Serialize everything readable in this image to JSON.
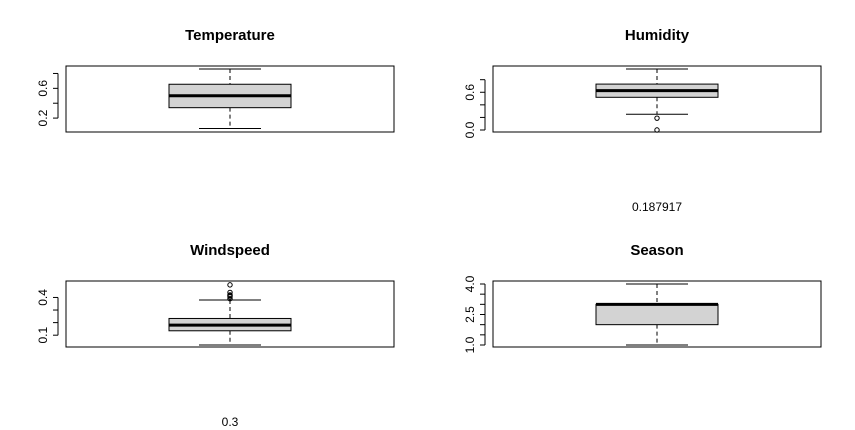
{
  "chart_data": [
    {
      "type": "boxplot",
      "title": "Temperature",
      "ylim": [
        0.04,
        0.86
      ],
      "yticks": [
        0.2,
        0.4,
        0.6,
        0.8
      ],
      "ytick_labels": [
        "0.2",
        "",
        "0.6",
        ""
      ],
      "whisker_low": 0.06,
      "q1": 0.34,
      "median": 0.5,
      "q3": 0.655,
      "whisker_high": 0.86,
      "outliers": [],
      "notes": []
    },
    {
      "type": "boxplot",
      "title": "Humidity",
      "ylim": [
        0.0,
        0.97
      ],
      "yticks": [
        0.0,
        0.2,
        0.4,
        0.6,
        0.8
      ],
      "ytick_labels": [
        "0.0",
        "",
        "",
        "0.6",
        ""
      ],
      "whisker_low": 0.25,
      "q1": 0.52,
      "median": 0.626,
      "q3": 0.73,
      "whisker_high": 0.97,
      "outliers": [
        0.0,
        0.187917
      ],
      "notes": [
        "0.187917"
      ]
    },
    {
      "type": "boxplot",
      "title": "Windspeed",
      "ylim": [
        0.022,
        0.507
      ],
      "yticks": [
        0.1,
        0.2,
        0.3,
        0.4
      ],
      "ytick_labels": [
        "0.1",
        "",
        "",
        "0.4"
      ],
      "whisker_low": 0.022,
      "q1": 0.135,
      "median": 0.18,
      "q3": 0.233,
      "whisker_high": 0.38,
      "outliers": [
        0.39,
        0.405,
        0.415,
        0.42,
        0.44,
        0.5
      ],
      "notes": [
        "0.3"
      ]
    },
    {
      "type": "boxplot",
      "title": "Season",
      "ylim": [
        1,
        4
      ],
      "yticks": [
        1.0,
        1.5,
        2.0,
        2.5,
        3.0,
        3.5,
        4.0
      ],
      "ytick_labels": [
        "1.0",
        "",
        "",
        "2.5",
        "",
        "",
        "4.0"
      ],
      "whisker_low": 1,
      "q1": 2,
      "median": 3,
      "q3": 3,
      "whisker_high": 4,
      "outliers": [],
      "notes": []
    }
  ]
}
